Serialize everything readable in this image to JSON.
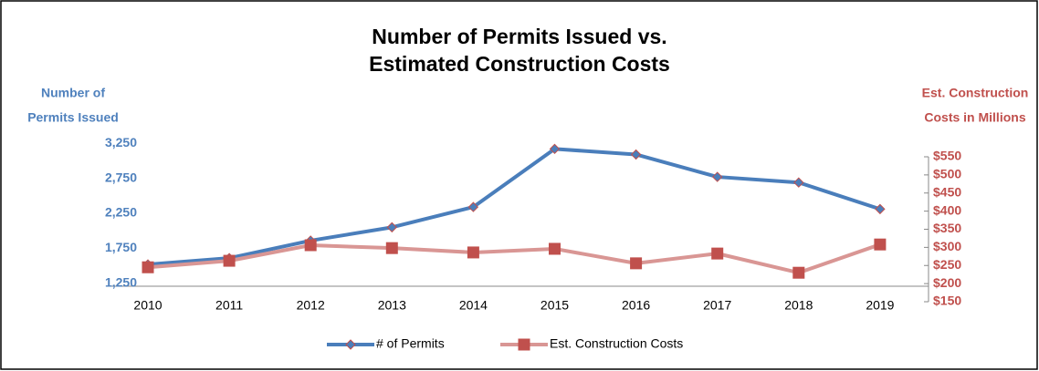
{
  "chart_data": {
    "type": "line",
    "title": [
      "Number of Permits Issued vs.",
      "Estimated Construction Costs"
    ],
    "y_label": [
      "Number of",
      "Permits Issued"
    ],
    "y2_label": [
      "Est. Construction",
      "Costs in Millions"
    ],
    "categories": [
      "2010",
      "2011",
      "2012",
      "2013",
      "2014",
      "2015",
      "2016",
      "2017",
      "2018",
      "2019"
    ],
    "series": [
      {
        "name": "# of Permits",
        "color": "#4a7ebb",
        "marker_edge": "#c0504d",
        "marker": "diamond",
        "values": [
          1520,
          1610,
          1860,
          2050,
          2340,
          3170,
          3090,
          2770,
          2690,
          2310
        ]
      },
      {
        "name": "Est. Construction Costs",
        "color": "#d99694",
        "marker_color": "#c0504d",
        "marker": "square",
        "axis": "y2",
        "values": [
          245,
          263,
          306,
          298,
          286,
          296,
          256,
          283,
          230,
          308
        ]
      }
    ],
    "ylim": [
      1000,
      3500
    ],
    "yticks": [
      {
        "value": 1250,
        "label": "1,250"
      },
      {
        "value": 1750,
        "label": "1,750"
      },
      {
        "value": 2250,
        "label": "2,250"
      },
      {
        "value": 2750,
        "label": "2,750"
      },
      {
        "value": 3250,
        "label": "3,250"
      }
    ],
    "y2lim": [
      150,
      550
    ],
    "y2ticks": [
      {
        "value": 150,
        "label": "$150"
      },
      {
        "value": 200,
        "label": "$200"
      },
      {
        "value": 250,
        "label": "$250"
      },
      {
        "value": 300,
        "label": "$300"
      },
      {
        "value": 350,
        "label": "$350"
      },
      {
        "value": 400,
        "label": "$400"
      },
      {
        "value": 450,
        "label": "$450"
      },
      {
        "value": 500,
        "label": "$500"
      },
      {
        "value": 550,
        "label": "$550"
      }
    ],
    "y_color": "#4f81bd",
    "y2_color": "#c0504d",
    "legend": "bottom"
  }
}
